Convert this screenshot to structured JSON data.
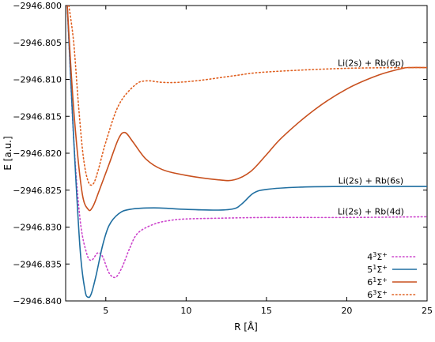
{
  "chart_data": {
    "type": "line",
    "title": "",
    "xlabel": "R [Å]",
    "ylabel": "E [a.u.]",
    "xlim": [
      2.5,
      25
    ],
    "ylim": [
      -2946.84,
      -2946.8
    ],
    "xticks": [
      5,
      10,
      15,
      20,
      25
    ],
    "yticks": [
      -2946.8,
      -2946.805,
      -2946.81,
      -2946.815,
      -2946.82,
      -2946.825,
      -2946.83,
      -2946.835,
      -2946.84
    ],
    "ytick_labels": [
      "−2946.800",
      "−2946.805",
      "−2946.810",
      "−2946.815",
      "−2946.820",
      "−2946.825",
      "−2946.830",
      "−2946.835",
      "−2946.840"
    ],
    "grid": false,
    "legend_position": "bottom-right",
    "annotations": [
      {
        "text": "Li(2s) + Rb(6p)",
        "x": 21.5,
        "y": -2946.8082
      },
      {
        "text": "Li(2s) + Rb(6s)",
        "x": 21.5,
        "y": -2946.8241
      },
      {
        "text": "Li(2s) + Rb(4d)",
        "x": 21.5,
        "y": -2946.8283
      }
    ],
    "series": [
      {
        "name": "4³Σ⁺",
        "label_main": "4",
        "label_sup1": "3",
        "label_sym": "Σ",
        "label_sup2": "+",
        "color": "#cc44cc",
        "style": "dotted",
        "points": [
          [
            2.6,
            -2946.8
          ],
          [
            3.0,
            -2946.818
          ],
          [
            3.4,
            -2946.829
          ],
          [
            3.8,
            -2946.8335
          ],
          [
            4.1,
            -2946.8345
          ],
          [
            4.5,
            -2946.8335
          ],
          [
            4.8,
            -2946.834
          ],
          [
            5.2,
            -2946.8362
          ],
          [
            5.6,
            -2946.8368
          ],
          [
            6.0,
            -2946.8355
          ],
          [
            6.5,
            -2946.8328
          ],
          [
            7.0,
            -2946.8308
          ],
          [
            8.0,
            -2946.8296
          ],
          [
            9.0,
            -2946.8291
          ],
          [
            10.0,
            -2946.8289
          ],
          [
            12.0,
            -2946.8288
          ],
          [
            15.0,
            -2946.8287
          ],
          [
            20.0,
            -2946.8287
          ],
          [
            25.0,
            -2946.8286
          ]
        ]
      },
      {
        "name": "5¹Σ⁺",
        "label_main": "5",
        "label_sup1": "1",
        "label_sym": "Σ",
        "label_sup2": "+",
        "color": "#1f6ea0",
        "style": "solid",
        "points": [
          [
            2.6,
            -2946.8
          ],
          [
            3.0,
            -2946.818
          ],
          [
            3.4,
            -2946.833
          ],
          [
            3.7,
            -2946.8385
          ],
          [
            3.9,
            -2946.8395
          ],
          [
            4.1,
            -2946.839
          ],
          [
            4.4,
            -2946.8365
          ],
          [
            4.8,
            -2946.8325
          ],
          [
            5.2,
            -2946.8298
          ],
          [
            5.8,
            -2946.8282
          ],
          [
            6.5,
            -2946.8276
          ],
          [
            8.0,
            -2946.8274
          ],
          [
            10.0,
            -2946.8276
          ],
          [
            12.0,
            -2946.8277
          ],
          [
            13.0,
            -2946.8275
          ],
          [
            13.5,
            -2946.8268
          ],
          [
            14.2,
            -2946.8254
          ],
          [
            15.0,
            -2946.8249
          ],
          [
            17.0,
            -2946.8246
          ],
          [
            20.0,
            -2946.8245
          ],
          [
            25.0,
            -2946.8245
          ]
        ]
      },
      {
        "name": "6¹Σ⁺",
        "label_main": "6",
        "label_sup1": "1",
        "label_sym": "Σ",
        "label_sup2": "+",
        "color": "#c8501e",
        "style": "solid",
        "points": [
          [
            2.6,
            -2946.8
          ],
          [
            3.0,
            -2946.814
          ],
          [
            3.5,
            -2946.825
          ],
          [
            3.9,
            -2946.8276
          ],
          [
            4.2,
            -2946.8272
          ],
          [
            4.6,
            -2946.825
          ],
          [
            5.2,
            -2946.8215
          ],
          [
            5.8,
            -2946.818
          ],
          [
            6.2,
            -2946.8172
          ],
          [
            6.7,
            -2946.8185
          ],
          [
            7.5,
            -2946.8208
          ],
          [
            8.5,
            -2946.8222
          ],
          [
            10.0,
            -2946.823
          ],
          [
            12.0,
            -2946.8236
          ],
          [
            13.0,
            -2946.8236
          ],
          [
            14.0,
            -2946.8225
          ],
          [
            15.0,
            -2946.8202
          ],
          [
            16.0,
            -2946.8178
          ],
          [
            18.0,
            -2946.8141
          ],
          [
            20.0,
            -2946.8113
          ],
          [
            22.0,
            -2946.8094
          ],
          [
            23.5,
            -2946.8085
          ],
          [
            24.0,
            -2946.8084
          ],
          [
            25.0,
            -2946.8084
          ]
        ]
      },
      {
        "name": "6³Σ⁺",
        "label_main": "6",
        "label_sup1": "3",
        "label_sym": "Σ",
        "label_sup2": "+",
        "color": "#e06020",
        "style": "dotted",
        "points": [
          [
            2.7,
            -2946.8
          ],
          [
            3.0,
            -2946.805
          ],
          [
            3.3,
            -2946.8135
          ],
          [
            3.6,
            -2946.8205
          ],
          [
            3.9,
            -2946.8238
          ],
          [
            4.2,
            -2946.8242
          ],
          [
            4.5,
            -2946.8225
          ],
          [
            5.0,
            -2946.8185
          ],
          [
            5.8,
            -2946.8135
          ],
          [
            6.8,
            -2946.8108
          ],
          [
            7.5,
            -2946.8102
          ],
          [
            8.5,
            -2946.8104
          ],
          [
            9.5,
            -2946.8104
          ],
          [
            11.0,
            -2946.8101
          ],
          [
            13.0,
            -2946.8095
          ],
          [
            15.0,
            -2946.809
          ],
          [
            20.0,
            -2946.8085
          ],
          [
            25.0,
            -2946.8084
          ]
        ]
      }
    ]
  }
}
